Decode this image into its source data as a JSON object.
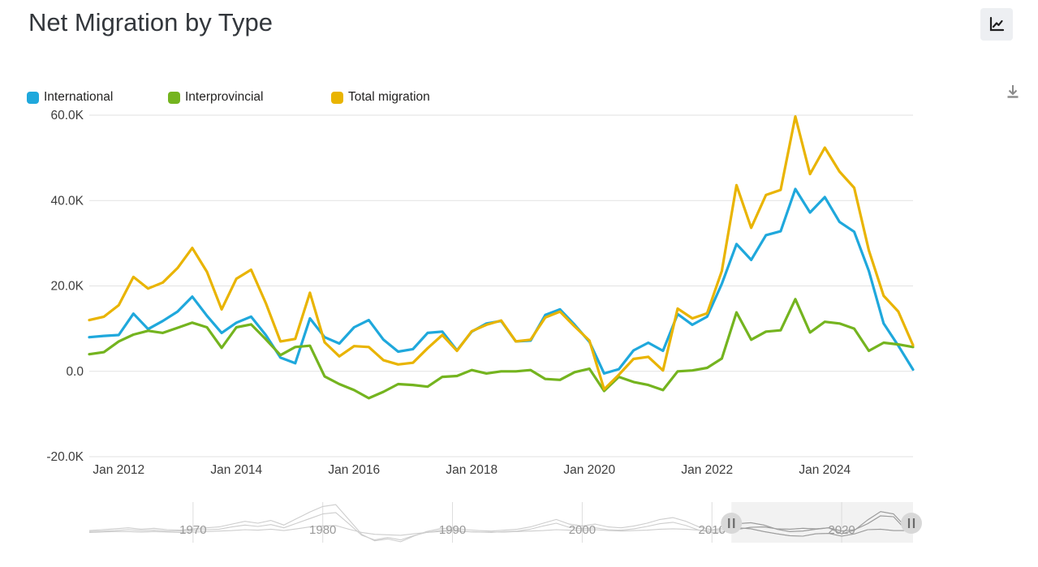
{
  "page": {
    "title": "Net Migration by Type"
  },
  "toolbar": {
    "focus_icon": "line-chart-icon",
    "download_icon": "download-icon"
  },
  "chart_data": {
    "type": "line",
    "title": "Net Migration by Type",
    "xlabel": "",
    "ylabel": "",
    "unit": "thousands of persons (K)",
    "grid": "horizontal",
    "legend_position": "top",
    "ylim": [
      -20,
      60
    ],
    "xlim": [
      2011.5,
      2025.5
    ],
    "x_start": 2011.5,
    "x_step": 0.25,
    "x_frequency": "quarterly",
    "y_ticks": [
      {
        "label": "60.0K",
        "value": 60
      },
      {
        "label": "40.0K",
        "value": 40
      },
      {
        "label": "20.0K",
        "value": 20
      },
      {
        "label": "0.0",
        "value": 0
      },
      {
        "label": "-20.0K",
        "value": -20
      }
    ],
    "x_ticks": [
      {
        "label": "Jan 2012",
        "value": 2012.0
      },
      {
        "label": "Jan 2014",
        "value": 2014.0
      },
      {
        "label": "Jan 2016",
        "value": 2016.0
      },
      {
        "label": "Jan 2018",
        "value": 2018.0
      },
      {
        "label": "Jan 2020",
        "value": 2020.0
      },
      {
        "label": "Jan 2022",
        "value": 2022.0
      },
      {
        "label": "Jan 2024",
        "value": 2024.0
      }
    ],
    "series": [
      {
        "name": "International",
        "color": "#1fa8dc",
        "values": [
          8.0,
          8.3,
          8.5,
          13.5,
          9.9,
          11.8,
          14.0,
          17.5,
          13.0,
          9.0,
          11.4,
          12.8,
          8.5,
          3.2,
          1.9,
          12.4,
          8.0,
          6.5,
          10.3,
          12.0,
          7.4,
          4.6,
          5.2,
          9.0,
          9.3,
          4.9,
          9.3,
          11.2,
          11.8,
          7.0,
          7.2,
          13.2,
          14.5,
          10.9,
          6.9,
          -0.5,
          0.5,
          4.9,
          6.7,
          4.8,
          13.4,
          10.9,
          12.8,
          20.5,
          29.8,
          26.1,
          31.9,
          32.8,
          42.7,
          37.2,
          40.8,
          35.0,
          32.7,
          23.5,
          11.2,
          6.0,
          0.4
        ]
      },
      {
        "name": "Interprovincial",
        "color": "#74b41f",
        "values": [
          4.0,
          4.5,
          7.0,
          8.6,
          9.5,
          9.0,
          10.2,
          11.4,
          10.3,
          5.5,
          10.3,
          11.0,
          7.5,
          3.8,
          5.7,
          6.0,
          -1.2,
          -3.0,
          -4.4,
          -6.3,
          -4.8,
          -3.0,
          -3.2,
          -3.6,
          -1.3,
          -1.1,
          0.3,
          -0.5,
          0.0,
          0.0,
          0.3,
          -1.8,
          -2.0,
          -0.2,
          0.6,
          -4.6,
          -1.3,
          -2.5,
          -3.2,
          -4.4,
          0.0,
          0.2,
          0.8,
          3.0,
          13.8,
          7.4,
          9.3,
          9.6,
          16.9,
          9.1,
          11.6,
          11.2,
          10.0,
          4.8,
          6.7,
          6.3,
          5.7
        ]
      },
      {
        "name": "Total migration",
        "color": "#e9b400",
        "values": [
          12.0,
          12.8,
          15.5,
          22.1,
          19.4,
          20.8,
          24.2,
          28.9,
          23.3,
          14.5,
          21.7,
          23.8,
          16.0,
          7.0,
          7.6,
          18.4,
          6.8,
          3.5,
          5.9,
          5.7,
          2.6,
          1.6,
          2.0,
          5.4,
          8.5,
          4.8,
          9.4,
          10.9,
          11.9,
          7.0,
          7.4,
          12.6,
          14.0,
          10.5,
          7.2,
          -4.2,
          -0.8,
          2.9,
          3.4,
          0.2,
          14.7,
          12.4,
          13.6,
          23.5,
          43.6,
          33.6,
          41.3,
          42.5,
          59.7,
          46.2,
          52.4,
          46.8,
          43.0,
          28.3,
          17.7,
          14.0,
          6.1
        ]
      }
    ],
    "navigator": {
      "description": "zoom slider showing full history, selected window highlighted",
      "xlim": [
        1962,
        2025.5
      ],
      "ylim": [
        -20,
        64
      ],
      "x_start": 1962,
      "x_step": 1,
      "selected_range": [
        2011.5,
        2025.5
      ],
      "year_labels": [
        {
          "label": "1970",
          "value": 1970
        },
        {
          "label": "1980",
          "value": 1980
        },
        {
          "label": "1990",
          "value": 1990
        },
        {
          "label": "2000",
          "value": 2000
        },
        {
          "label": "2010",
          "value": 2010
        },
        {
          "label": "2020",
          "value": 2020
        }
      ],
      "series": [
        {
          "name": "International",
          "values": [
            2,
            3,
            4,
            4,
            3,
            4,
            3,
            2,
            3,
            4,
            5,
            6,
            8,
            7,
            9,
            6,
            10,
            14,
            16,
            17,
            9,
            2,
            -2,
            -3,
            -4,
            -1,
            2,
            4,
            5,
            4,
            3,
            3,
            3,
            4,
            5,
            6,
            8,
            7,
            6,
            8,
            6,
            5,
            6,
            7,
            9,
            10,
            9,
            7,
            6,
            8,
            9,
            13,
            14,
            10,
            9,
            11,
            10,
            12,
            5,
            8,
            21,
            38,
            36,
            6
          ]
        },
        {
          "name": "Interprovincial",
          "values": [
            4,
            5,
            6,
            8,
            6,
            7,
            5,
            5,
            7,
            8,
            9,
            14,
            18,
            15,
            19,
            12,
            22,
            32,
            42,
            45,
            21,
            -4,
            -14,
            -9,
            -14,
            -5,
            2,
            6,
            7,
            4,
            3,
            2,
            4,
            5,
            9,
            16,
            22,
            13,
            10,
            12,
            8,
            7,
            10,
            15,
            21,
            24,
            17,
            7,
            2,
            4,
            12,
            10,
            4,
            -1,
            -5,
            -6,
            -1,
            0,
            -6,
            -1,
            8,
            9,
            6,
            6
          ]
        },
        {
          "name": "Total migration",
          "values": [
            6,
            8,
            10,
            12,
            9,
            11,
            8,
            7,
            10,
            12,
            14,
            20,
            26,
            22,
            28,
            18,
            32,
            46,
            58,
            62,
            30,
            -2,
            -16,
            -12,
            -18,
            -6,
            4,
            10,
            12,
            8,
            6,
            5,
            7,
            9,
            14,
            22,
            30,
            20,
            16,
            20,
            14,
            12,
            16,
            22,
            30,
            34,
            26,
            14,
            8,
            12,
            21,
            23,
            18,
            9,
            4,
            5,
            9,
            12,
            -1,
            7,
            29,
            47,
            42,
            12
          ]
        }
      ]
    }
  }
}
